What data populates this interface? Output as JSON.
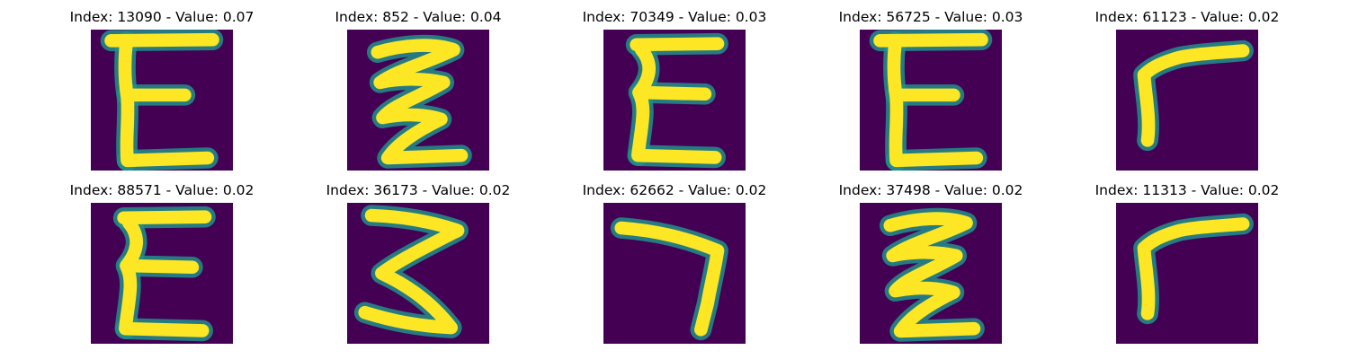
{
  "colors": {
    "background": "#440154",
    "mid": "#21918c",
    "stroke": "#fde725"
  },
  "panels": [
    {
      "title": "Index: 13090 - Value: 0.07",
      "glyph": "E"
    },
    {
      "title": "Index: 852 - Value: 0.04",
      "glyph": "zigzag-e"
    },
    {
      "title": "Index: 70349 - Value: 0.03",
      "glyph": "wavy-e"
    },
    {
      "title": "Index: 56725 - Value: 0.03",
      "glyph": "E"
    },
    {
      "title": "Index: 61123 - Value: 0.02",
      "glyph": "r-hook"
    },
    {
      "title": "Index: 88571 - Value: 0.02",
      "glyph": "wavy-e"
    },
    {
      "title": "Index: 36173 - Value: 0.02",
      "glyph": "three"
    },
    {
      "title": "Index: 62662 - Value: 0.02",
      "glyph": "seven"
    },
    {
      "title": "Index: 37498 - Value: 0.02",
      "glyph": "zigzag-e"
    },
    {
      "title": "Index: 11313 - Value: 0.02",
      "glyph": "r-hook"
    }
  ]
}
